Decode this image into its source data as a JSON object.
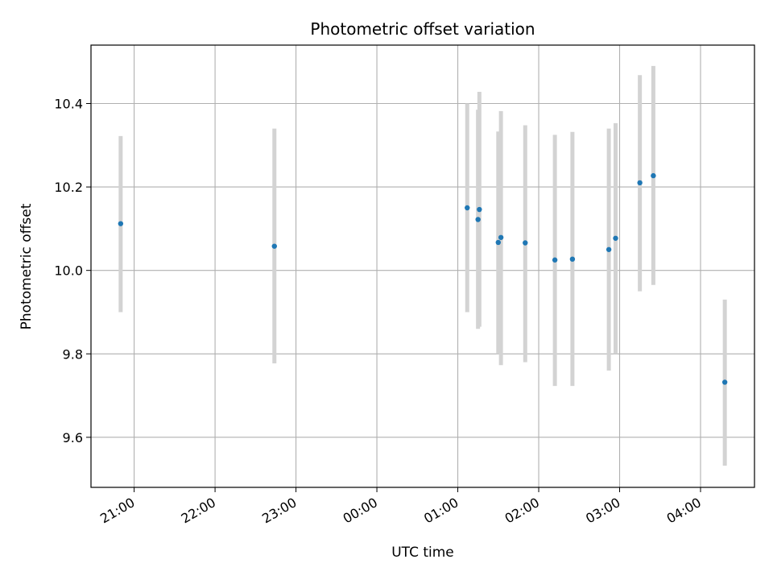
{
  "chart_data": {
    "type": "scatter",
    "title": "Photometric offset variation",
    "xlabel": "UTC time",
    "ylabel": "Photometric offset",
    "xlim": [
      "20:28",
      "04:40"
    ],
    "ylim": [
      9.48,
      10.54
    ],
    "x_ticks": [
      "21:00",
      "22:00",
      "23:00",
      "00:00",
      "01:00",
      "02:00",
      "03:00",
      "04:00"
    ],
    "y_ticks": [
      9.6,
      9.8,
      10.0,
      10.2,
      10.4
    ],
    "grid": true,
    "colors": {
      "point": "#1f77b4",
      "errorbar": "#d3d3d3",
      "grid": "#b0b0b0"
    },
    "points": [
      {
        "x": "20:50",
        "y": 10.112,
        "ylo": 9.9,
        "yhi": 10.322
      },
      {
        "x": "22:44",
        "y": 10.058,
        "ylo": 9.777,
        "yhi": 10.34
      },
      {
        "x": "01:07",
        "y": 10.15,
        "ylo": 9.9,
        "yhi": 10.4
      },
      {
        "x": "01:15",
        "y": 10.122,
        "ylo": 9.86,
        "yhi": 10.385
      },
      {
        "x": "01:16",
        "y": 10.146,
        "ylo": 9.865,
        "yhi": 10.428
      },
      {
        "x": "01:30",
        "y": 10.067,
        "ylo": 9.8,
        "yhi": 10.333
      },
      {
        "x": "01:32",
        "y": 10.079,
        "ylo": 9.773,
        "yhi": 10.382
      },
      {
        "x": "01:50",
        "y": 10.066,
        "ylo": 9.78,
        "yhi": 10.348
      },
      {
        "x": "02:12",
        "y": 10.025,
        "ylo": 9.723,
        "yhi": 10.325
      },
      {
        "x": "02:25",
        "y": 10.027,
        "ylo": 9.723,
        "yhi": 10.332
      },
      {
        "x": "02:52",
        "y": 10.05,
        "ylo": 9.76,
        "yhi": 10.34
      },
      {
        "x": "02:57",
        "y": 10.077,
        "ylo": 9.8,
        "yhi": 10.353
      },
      {
        "x": "03:15",
        "y": 10.21,
        "ylo": 9.95,
        "yhi": 10.468
      },
      {
        "x": "03:25",
        "y": 10.227,
        "ylo": 9.965,
        "yhi": 10.49
      },
      {
        "x": "04:18",
        "y": 9.732,
        "ylo": 9.532,
        "yhi": 9.93
      }
    ]
  }
}
